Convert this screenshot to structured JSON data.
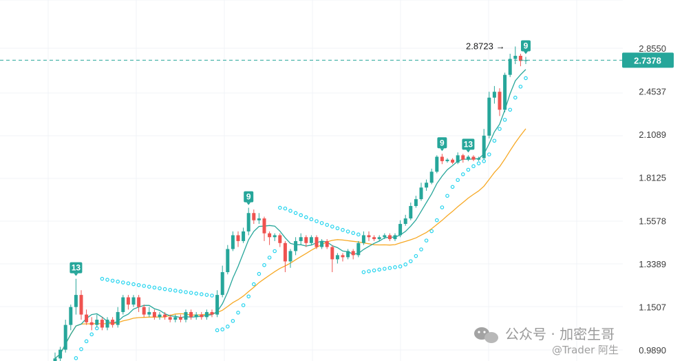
{
  "chart_data": {
    "type": "candlestick",
    "y_axis": {
      "tick_labels": [
        "2.8550",
        "2.4537",
        "2.1089",
        "1.8125",
        "1.5578",
        "1.3389",
        "1.1507",
        "0.9890"
      ],
      "ylim": [
        0.95,
        3.1
      ],
      "scale": "log"
    },
    "last_price": "2.7378",
    "high_label": "2.8723",
    "colors": {
      "up": "#26a69a",
      "down": "#ef5350",
      "ma_fast": "#26a69a",
      "ma_slow": "#f7a823",
      "sar": "#22d3ee",
      "price_line": "#26a69a"
    },
    "candles": [
      [
        0.94,
        0.96,
        0.93,
        0.98
      ],
      [
        0.96,
        0.99,
        0.95,
        1.0
      ],
      [
        0.99,
        1.08,
        0.98,
        1.1
      ],
      [
        1.08,
        1.15,
        1.06,
        1.16
      ],
      [
        1.15,
        1.2,
        1.12,
        1.27
      ],
      [
        1.2,
        1.12,
        1.1,
        1.22
      ],
      [
        1.12,
        1.09,
        1.08,
        1.14
      ],
      [
        1.09,
        1.08,
        1.06,
        1.11
      ],
      [
        1.08,
        1.1,
        1.07,
        1.12
      ],
      [
        1.1,
        1.07,
        1.06,
        1.11
      ],
      [
        1.07,
        1.1,
        1.06,
        1.11
      ],
      [
        1.1,
        1.08,
        1.07,
        1.11
      ],
      [
        1.08,
        1.13,
        1.07,
        1.15
      ],
      [
        1.13,
        1.19,
        1.12,
        1.2
      ],
      [
        1.19,
        1.16,
        1.14,
        1.2
      ],
      [
        1.16,
        1.19,
        1.15,
        1.2
      ],
      [
        1.19,
        1.15,
        1.13,
        1.2
      ],
      [
        1.15,
        1.12,
        1.11,
        1.16
      ],
      [
        1.12,
        1.13,
        1.11,
        1.15
      ],
      [
        1.13,
        1.11,
        1.1,
        1.14
      ],
      [
        1.11,
        1.12,
        1.1,
        1.13
      ],
      [
        1.12,
        1.11,
        1.1,
        1.13
      ],
      [
        1.11,
        1.1,
        1.09,
        1.12
      ],
      [
        1.1,
        1.11,
        1.09,
        1.12
      ],
      [
        1.11,
        1.1,
        1.09,
        1.12
      ],
      [
        1.1,
        1.13,
        1.09,
        1.14
      ],
      [
        1.13,
        1.11,
        1.1,
        1.14
      ],
      [
        1.11,
        1.12,
        1.1,
        1.13
      ],
      [
        1.12,
        1.11,
        1.1,
        1.13
      ],
      [
        1.11,
        1.13,
        1.1,
        1.14
      ],
      [
        1.13,
        1.12,
        1.11,
        1.14
      ],
      [
        1.12,
        1.2,
        1.11,
        1.22
      ],
      [
        1.2,
        1.3,
        1.19,
        1.33
      ],
      [
        1.3,
        1.41,
        1.29,
        1.43
      ],
      [
        1.41,
        1.48,
        1.4,
        1.5
      ],
      [
        1.48,
        1.45,
        1.42,
        1.5
      ],
      [
        1.45,
        1.5,
        1.44,
        1.52
      ],
      [
        1.5,
        1.6,
        1.48,
        1.63
      ],
      [
        1.6,
        1.56,
        1.54,
        1.62
      ],
      [
        1.56,
        1.57,
        1.54,
        1.6
      ],
      [
        1.57,
        1.49,
        1.45,
        1.58
      ],
      [
        1.49,
        1.47,
        1.43,
        1.5
      ],
      [
        1.47,
        1.48,
        1.45,
        1.49
      ],
      [
        1.48,
        1.44,
        1.42,
        1.49
      ],
      [
        1.44,
        1.35,
        1.3,
        1.45
      ],
      [
        1.35,
        1.4,
        1.32,
        1.41
      ],
      [
        1.4,
        1.45,
        1.38,
        1.47
      ],
      [
        1.45,
        1.47,
        1.43,
        1.49
      ],
      [
        1.47,
        1.44,
        1.42,
        1.48
      ],
      [
        1.44,
        1.47,
        1.43,
        1.48
      ],
      [
        1.47,
        1.42,
        1.41,
        1.48
      ],
      [
        1.42,
        1.45,
        1.41,
        1.46
      ],
      [
        1.45,
        1.42,
        1.41,
        1.46
      ],
      [
        1.42,
        1.36,
        1.3,
        1.43
      ],
      [
        1.36,
        1.38,
        1.34,
        1.39
      ],
      [
        1.38,
        1.37,
        1.35,
        1.39
      ],
      [
        1.37,
        1.4,
        1.36,
        1.41
      ],
      [
        1.4,
        1.38,
        1.36,
        1.41
      ],
      [
        1.38,
        1.44,
        1.37,
        1.45
      ],
      [
        1.44,
        1.48,
        1.43,
        1.5
      ],
      [
        1.48,
        1.47,
        1.45,
        1.5
      ],
      [
        1.47,
        1.46,
        1.45,
        1.48
      ],
      [
        1.46,
        1.47,
        1.45,
        1.48
      ],
      [
        1.47,
        1.48,
        1.46,
        1.49
      ],
      [
        1.48,
        1.46,
        1.45,
        1.49
      ],
      [
        1.46,
        1.48,
        1.45,
        1.49
      ],
      [
        1.48,
        1.54,
        1.47,
        1.56
      ],
      [
        1.54,
        1.57,
        1.53,
        1.59
      ],
      [
        1.57,
        1.64,
        1.56,
        1.66
      ],
      [
        1.64,
        1.68,
        1.63,
        1.7
      ],
      [
        1.68,
        1.75,
        1.67,
        1.78
      ],
      [
        1.75,
        1.78,
        1.73,
        1.8
      ],
      [
        1.78,
        1.85,
        1.77,
        1.87
      ],
      [
        1.85,
        1.95,
        1.84,
        1.96
      ],
      [
        1.95,
        1.92,
        1.9,
        1.97
      ],
      [
        1.92,
        1.93,
        1.91,
        1.94
      ],
      [
        1.93,
        1.91,
        1.9,
        1.94
      ],
      [
        1.91,
        1.96,
        1.9,
        1.98
      ],
      [
        1.96,
        1.93,
        1.91,
        1.97
      ],
      [
        1.93,
        1.95,
        1.92,
        1.96
      ],
      [
        1.95,
        1.93,
        1.92,
        1.96
      ],
      [
        1.93,
        1.94,
        1.92,
        1.95
      ],
      [
        1.94,
        2.1,
        1.93,
        2.15
      ],
      [
        2.1,
        2.4,
        2.08,
        2.45
      ],
      [
        2.4,
        2.45,
        2.35,
        2.5
      ],
      [
        2.45,
        2.3,
        2.25,
        2.48
      ],
      [
        2.3,
        2.6,
        2.28,
        2.62
      ],
      [
        2.6,
        2.75,
        2.58,
        2.8
      ],
      [
        2.75,
        2.78,
        2.7,
        2.8723
      ],
      [
        2.78,
        2.73,
        2.68,
        2.8
      ],
      [
        2.73,
        2.7378,
        2.7,
        2.77
      ]
    ],
    "td_markers": [
      {
        "index": 4,
        "label": "13"
      },
      {
        "index": 37,
        "label": "9"
      },
      {
        "index": 74,
        "label": "9"
      },
      {
        "index": 79,
        "label": "13"
      },
      {
        "index": 90,
        "label": "9"
      }
    ]
  },
  "watermark": {
    "title": "公众号 · 加密生哥",
    "sub": "@Trader 阿生"
  }
}
